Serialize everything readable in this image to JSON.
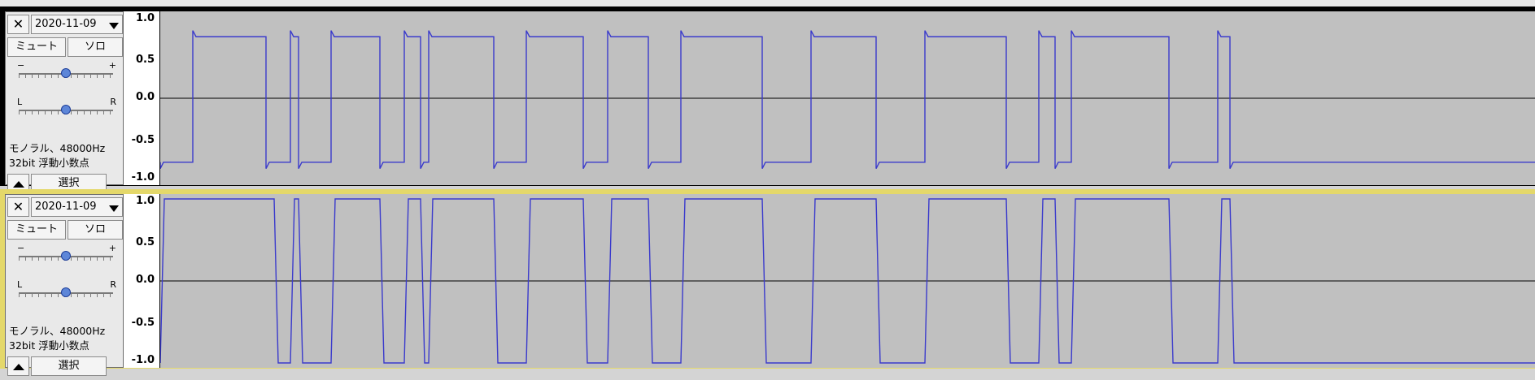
{
  "tracks": [
    {
      "close_glyph": "✕",
      "name": "2020-11-09",
      "mute_label": "ミュート",
      "solo_label": "ソロ",
      "gain_left": "−",
      "gain_right": "+",
      "gain_level": 0.5,
      "pan_left": "L",
      "pan_right": "R",
      "pan_level": 0.5,
      "info_line1": "モノラル、48000Hz",
      "info_line2": "32bit 浮動小数点",
      "select_label": "選択",
      "scale": [
        "1.0",
        "0.5",
        "0.0",
        "-0.5",
        "-1.0"
      ],
      "selected": false
    },
    {
      "close_glyph": "✕",
      "name": "2020-11-09",
      "mute_label": "ミュート",
      "solo_label": "ソロ",
      "gain_left": "−",
      "gain_right": "+",
      "gain_level": 0.5,
      "pan_left": "L",
      "pan_right": "R",
      "pan_level": 0.5,
      "info_line1": "モノラル、48000Hz",
      "info_line2": "32bit 浮動小数点",
      "select_label": "選択",
      "scale": [
        "1.0",
        "0.5",
        "0.0",
        "-0.5",
        "-1.0"
      ],
      "selected": true
    }
  ],
  "colors": {
    "waveform": "#3a3acc",
    "wave_background": "#c0c0c0",
    "selected_border": "#e4d86a"
  }
}
